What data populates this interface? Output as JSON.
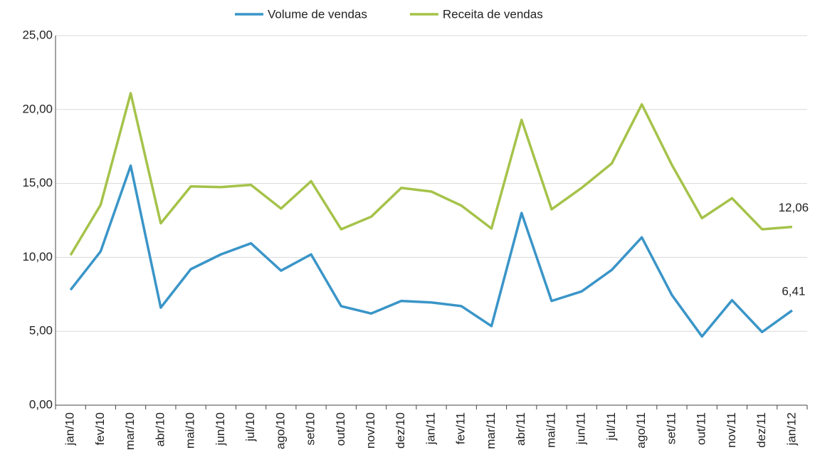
{
  "chart_data": {
    "type": "line",
    "categories": [
      "jan/10",
      "fev/10",
      "mar/10",
      "abr/10",
      "mai/10",
      "jun/10",
      "jul/10",
      "ago/10",
      "set/10",
      "out/10",
      "nov/10",
      "dez/10",
      "jan/11",
      "fev/11",
      "mar/11",
      "abr/11",
      "mai/11",
      "jun/11",
      "jul/11",
      "ago/11",
      "set/11",
      "out/11",
      "nov/11",
      "dez/11",
      "jan/12"
    ],
    "series": [
      {
        "name": "Volume de vendas",
        "color": "#3a95c8",
        "values": [
          7.8,
          10.4,
          16.2,
          6.6,
          9.2,
          10.2,
          10.95,
          9.1,
          10.2,
          6.7,
          6.2,
          7.05,
          6.95,
          6.7,
          5.35,
          13.0,
          7.05,
          7.7,
          9.15,
          11.35,
          7.45,
          4.65,
          7.1,
          4.95,
          6.41
        ],
        "value_labels": [
          null,
          null,
          null,
          null,
          null,
          null,
          null,
          null,
          null,
          null,
          null,
          null,
          null,
          null,
          null,
          null,
          null,
          null,
          null,
          null,
          null,
          null,
          null,
          null,
          "6,41"
        ]
      },
      {
        "name": "Receita de vendas",
        "color": "#a5c34a",
        "values": [
          10.15,
          13.55,
          21.1,
          12.3,
          14.8,
          14.75,
          14.9,
          13.3,
          15.15,
          11.9,
          12.75,
          14.7,
          14.45,
          13.5,
          11.95,
          19.3,
          13.25,
          14.7,
          16.35,
          20.35,
          16.25,
          12.65,
          14.0,
          11.9,
          12.06
        ],
        "value_labels": [
          null,
          null,
          null,
          null,
          null,
          null,
          null,
          null,
          null,
          null,
          null,
          null,
          null,
          null,
          null,
          null,
          null,
          null,
          null,
          null,
          null,
          null,
          null,
          null,
          "12,06"
        ]
      }
    ],
    "ylim": [
      0,
      25
    ],
    "yticks": [
      {
        "value": 0,
        "label": "0,00"
      },
      {
        "value": 5,
        "label": "5,00"
      },
      {
        "value": 10,
        "label": "10,00"
      },
      {
        "value": 15,
        "label": "15,00"
      },
      {
        "value": 20,
        "label": "20,00"
      },
      {
        "value": 25,
        "label": "25,00"
      }
    ],
    "grid": true,
    "legend": "top"
  }
}
